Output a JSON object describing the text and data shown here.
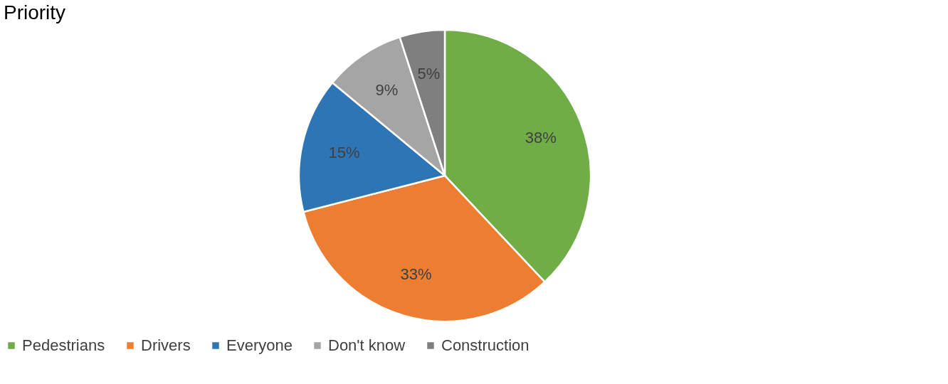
{
  "chart_data": {
    "type": "pie",
    "title": "Priority",
    "categories": [
      "Pedestrians",
      "Drivers",
      "Everyone",
      "Don't know",
      "Construction"
    ],
    "values": [
      38,
      33,
      15,
      9,
      5
    ],
    "colors": [
      "#70ad47",
      "#ed7d31",
      "#2e75b6",
      "#a5a5a5",
      "#7f7f7f"
    ],
    "value_labels": [
      "38%",
      "33%",
      "15%",
      "9%",
      "5%"
    ],
    "legend": "bottom"
  }
}
